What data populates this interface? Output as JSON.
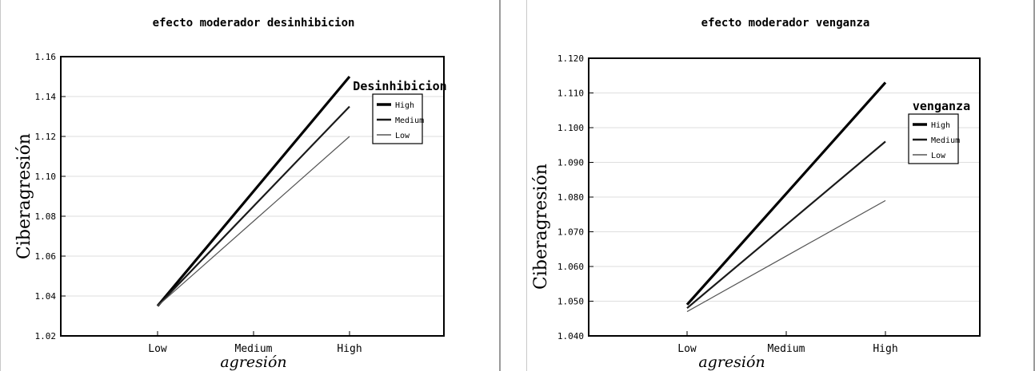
{
  "chart_data": [
    {
      "type": "line",
      "title": "efecto moderador desinhibicion",
      "xlabel": "agresión",
      "ylabel": "Ciberagresión",
      "categories": [
        "Low",
        "Medium",
        "High"
      ],
      "ylim": [
        1.02,
        1.16
      ],
      "yticks": [
        "1.02",
        "1.04",
        "1.06",
        "1.08",
        "1.10",
        "1.12",
        "1.14",
        "1.16"
      ],
      "grid": true,
      "legend_title": "Desinhibicion",
      "legend_position": "top-right",
      "series": [
        {
          "name": "High",
          "values": [
            1.035,
            1.0925,
            1.15
          ],
          "color": "#000000",
          "weight": "thick"
        },
        {
          "name": "Medium",
          "values": [
            1.035,
            1.085,
            1.135
          ],
          "color": "#1a1a1a",
          "weight": "medium"
        },
        {
          "name": "Low",
          "values": [
            1.035,
            1.0775,
            1.12
          ],
          "color": "#555555",
          "weight": "thin"
        }
      ]
    },
    {
      "type": "line",
      "title": "efecto moderador venganza",
      "xlabel": "agresión",
      "ylabel": "Ciberagresión",
      "categories": [
        "Low",
        "Medium",
        "High"
      ],
      "ylim": [
        1.04,
        1.12
      ],
      "yticks": [
        "1.040",
        "1.050",
        "1.060",
        "1.070",
        "1.080",
        "1.090",
        "1.100",
        "1.110",
        "1.120"
      ],
      "grid": true,
      "legend_title": "venganza",
      "legend_position": "top-right",
      "series": [
        {
          "name": "High",
          "values": [
            1.049,
            1.081,
            1.113
          ],
          "color": "#000000",
          "weight": "thick"
        },
        {
          "name": "Medium",
          "values": [
            1.048,
            1.072,
            1.096
          ],
          "color": "#1a1a1a",
          "weight": "medium"
        },
        {
          "name": "Low",
          "values": [
            1.047,
            1.063,
            1.079
          ],
          "color": "#555555",
          "weight": "thin"
        }
      ]
    }
  ]
}
